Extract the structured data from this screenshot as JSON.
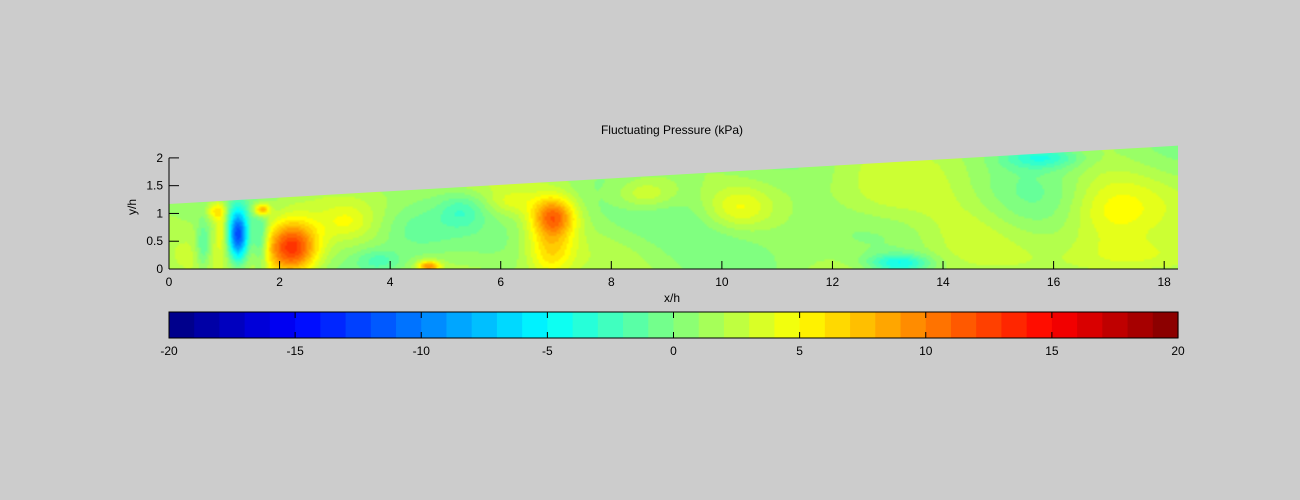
{
  "chart_data": {
    "type": "heatmap",
    "title": "Fluctuating Pressure (kPa)",
    "xlabel": "x/h",
    "ylabel": "y/h",
    "xlim": [
      0,
      18.25
    ],
    "ylim": [
      0,
      2.25
    ],
    "x_ticks": [
      0,
      2,
      4,
      6,
      8,
      10,
      12,
      14,
      16,
      18
    ],
    "y_ticks": [
      0,
      0.5,
      1,
      1.5,
      2
    ],
    "domain_top_edge": [
      [
        0,
        1.17
      ],
      [
        18.25,
        2.22
      ]
    ],
    "colorbar": {
      "colormap": "jet",
      "levels": 40,
      "range": [
        -20,
        20
      ],
      "ticks": [
        -20,
        -15,
        -10,
        -5,
        0,
        5,
        10,
        15,
        20
      ],
      "placement": "bottom"
    },
    "field_features": [
      {
        "x": 1.25,
        "y": 0.6,
        "sx": 0.13,
        "sy": 0.33,
        "value": -14
      },
      {
        "x": 0.62,
        "y": 0.42,
        "sx": 0.09,
        "sy": 0.3,
        "value": -4
      },
      {
        "x": 0.95,
        "y": 0.72,
        "sx": 0.08,
        "sy": 0.3,
        "value": 3
      },
      {
        "x": 2.22,
        "y": 0.38,
        "sx": 0.34,
        "sy": 0.34,
        "value": 12
      },
      {
        "x": 1.65,
        "y": 0.5,
        "sx": 0.1,
        "sy": 0.35,
        "value": -5
      },
      {
        "x": 0.85,
        "y": 1.05,
        "sx": 0.12,
        "sy": 0.12,
        "value": 5
      },
      {
        "x": 1.68,
        "y": 1.07,
        "sx": 0.1,
        "sy": 0.08,
        "value": 8
      },
      {
        "x": 6.95,
        "y": 0.95,
        "sx": 0.28,
        "sy": 0.25,
        "value": 9
      },
      {
        "x": 6.9,
        "y": 0.35,
        "sx": 0.3,
        "sy": 0.35,
        "value": 5
      },
      {
        "x": 4.7,
        "y": 0.05,
        "sx": 0.14,
        "sy": 0.07,
        "value": 8
      },
      {
        "x": 5.3,
        "y": 1.05,
        "sx": 0.3,
        "sy": 0.22,
        "value": -3
      },
      {
        "x": 4.4,
        "y": 0.7,
        "sx": 0.5,
        "sy": 0.35,
        "value": -2.5
      },
      {
        "x": 3.8,
        "y": 0.15,
        "sx": 0.3,
        "sy": 0.15,
        "value": -3
      },
      {
        "x": 3.2,
        "y": 0.85,
        "sx": 0.3,
        "sy": 0.2,
        "value": 2
      },
      {
        "x": 9.0,
        "y": 0.7,
        "sx": 1.2,
        "sy": 0.5,
        "value": -1.5
      },
      {
        "x": 11.5,
        "y": 0.9,
        "sx": 1.5,
        "sy": 0.5,
        "value": -1
      },
      {
        "x": 13.2,
        "y": 0.1,
        "sx": 0.4,
        "sy": 0.12,
        "value": -6
      },
      {
        "x": 15.8,
        "y": 2.02,
        "sx": 0.5,
        "sy": 0.15,
        "value": -5
      },
      {
        "x": 15.5,
        "y": 1.0,
        "sx": 1.2,
        "sy": 0.6,
        "value": -1.5
      },
      {
        "x": 17.0,
        "y": 1.0,
        "sx": 0.6,
        "sy": 0.5,
        "value": 3.5
      },
      {
        "x": 17.5,
        "y": 0.2,
        "sx": 0.8,
        "sy": 0.25,
        "value": 3
      },
      {
        "x": 14.3,
        "y": 0.8,
        "sx": 0.7,
        "sy": 0.6,
        "value": 2
      },
      {
        "x": 10.3,
        "y": 1.1,
        "sx": 0.4,
        "sy": 0.25,
        "value": 3
      },
      {
        "x": 8.6,
        "y": 1.35,
        "sx": 0.4,
        "sy": 0.2,
        "value": 3.5
      },
      {
        "x": 12.8,
        "y": 1.15,
        "sx": 0.7,
        "sy": 0.4,
        "value": 2
      },
      {
        "x": 6.2,
        "y": 1.2,
        "sx": 0.3,
        "sy": 0.15,
        "value": 2
      }
    ]
  }
}
